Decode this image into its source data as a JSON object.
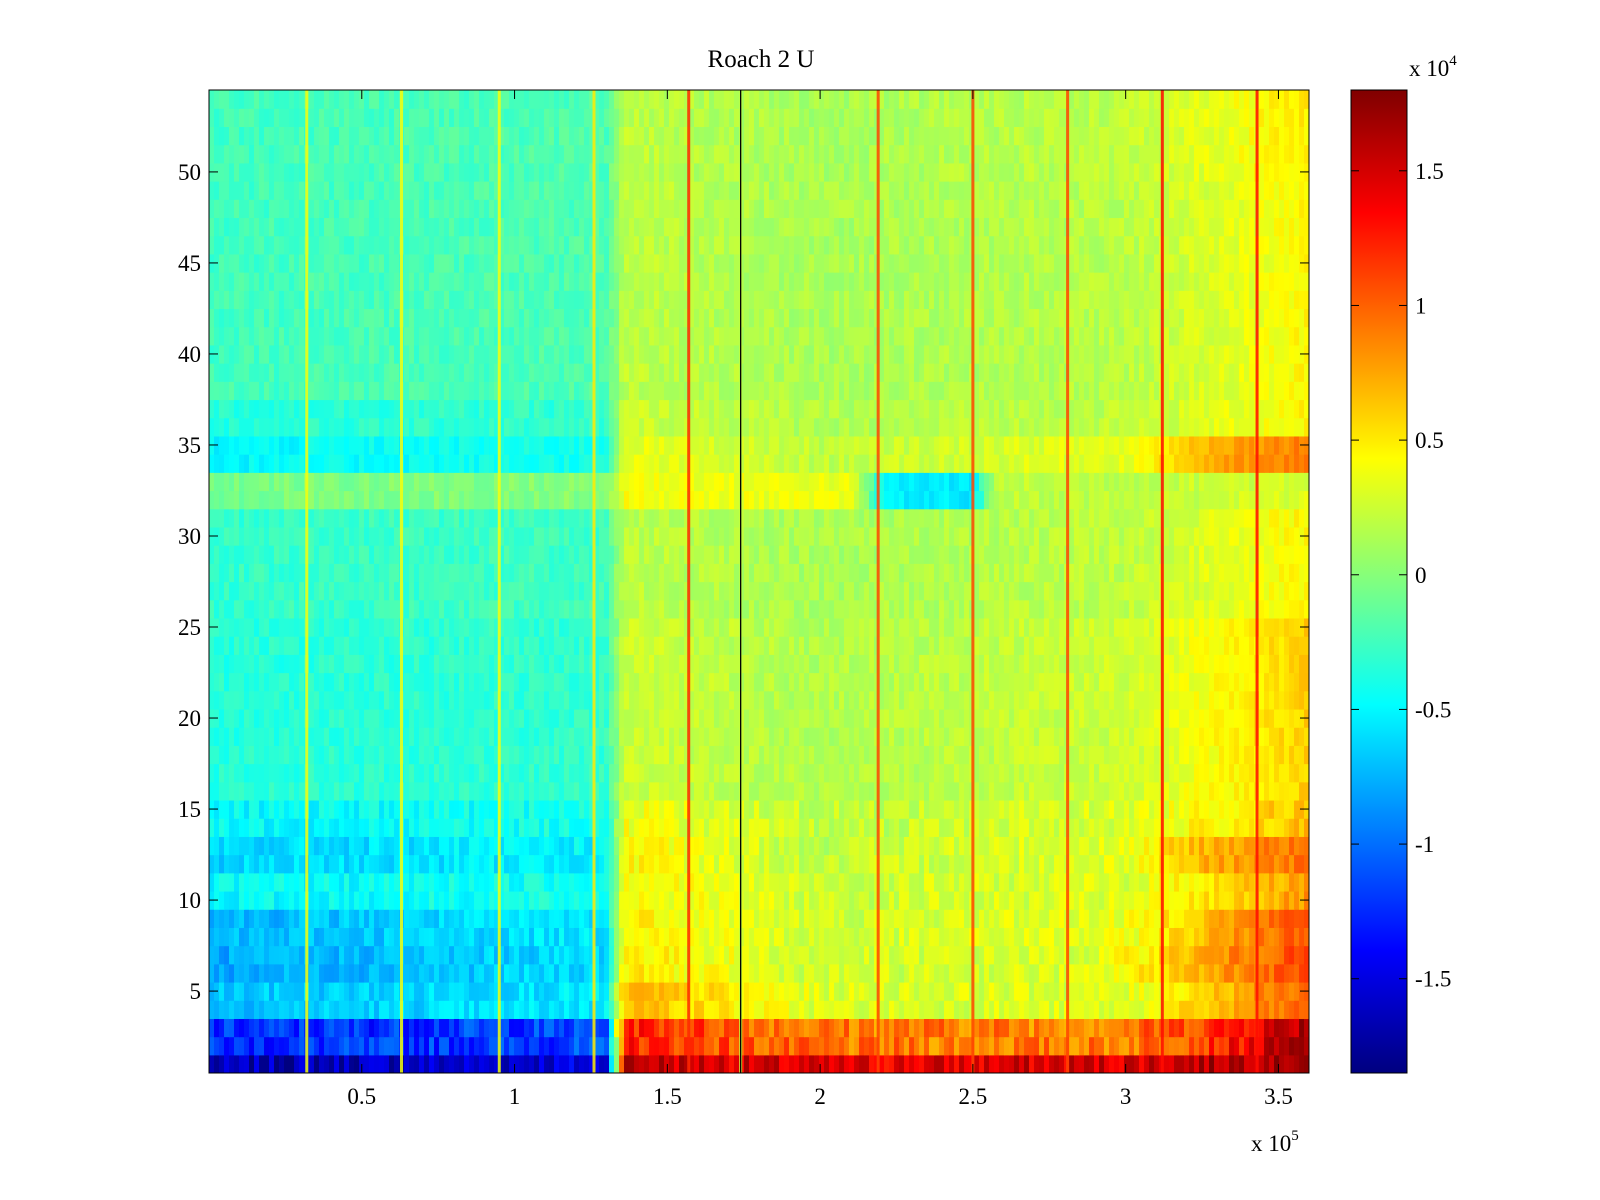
{
  "chart_data": {
    "type": "heatmap",
    "title": "Roach 2 U",
    "xlabel": "",
    "ylabel": "",
    "xlim": [
      0,
      360000
    ],
    "ylim": [
      0.5,
      54.5
    ],
    "x_ticks": [
      50000,
      100000,
      150000,
      200000,
      250000,
      300000,
      350000
    ],
    "x_tick_labels": [
      "0.5",
      "1",
      "1.5",
      "2",
      "2.5",
      "3",
      "3.5"
    ],
    "x_multiplier_label": {
      "base": "x 10",
      "exponent": "5"
    },
    "y_ticks": [
      5,
      10,
      15,
      20,
      25,
      30,
      35,
      40,
      45,
      50
    ],
    "y_tick_labels": [
      "5",
      "10",
      "15",
      "20",
      "25",
      "30",
      "35",
      "40",
      "45",
      "50"
    ],
    "colorbar": {
      "colormap": "jet",
      "clim": [
        -18500,
        18000
      ],
      "ticks": [
        -15000,
        -10000,
        -5000,
        0,
        5000,
        10000,
        15000
      ],
      "tick_labels": [
        "-1.5",
        "-1",
        "-0.5",
        "0",
        "0.5",
        "1",
        "1.5"
      ],
      "multiplier_label": {
        "base": "x 10",
        "exponent": "4"
      }
    },
    "rows": 54,
    "row_bands": [
      {
        "y_from": 1,
        "y_to": 1,
        "values_at_x": [
          [
            0,
            -17000
          ],
          [
            130000,
            -15000
          ],
          [
            136000,
            16000
          ],
          [
            200000,
            14000
          ],
          [
            300000,
            15000
          ],
          [
            360000,
            17500
          ]
        ]
      },
      {
        "y_from": 2,
        "y_to": 3,
        "values_at_x": [
          [
            0,
            -12500
          ],
          [
            130000,
            -11500
          ],
          [
            136000,
            12500
          ],
          [
            200000,
            9000
          ],
          [
            300000,
            9000
          ],
          [
            330000,
            12000
          ],
          [
            360000,
            17000
          ]
        ]
      },
      {
        "y_from": 4,
        "y_to": 5,
        "values_at_x": [
          [
            0,
            -7000
          ],
          [
            130000,
            -5500
          ],
          [
            136000,
            7000
          ],
          [
            200000,
            3000
          ],
          [
            300000,
            3000
          ],
          [
            360000,
            10000
          ]
        ]
      },
      {
        "y_from": 6,
        "y_to": 7,
        "values_at_x": [
          [
            0,
            -8000
          ],
          [
            130000,
            -6000
          ],
          [
            136000,
            5000
          ],
          [
            200000,
            2500
          ],
          [
            290000,
            3000
          ],
          [
            330000,
            8000
          ],
          [
            360000,
            11000
          ]
        ]
      },
      {
        "y_from": 8,
        "y_to": 9,
        "values_at_x": [
          [
            0,
            -7500
          ],
          [
            130000,
            -5500
          ],
          [
            136000,
            5000
          ],
          [
            200000,
            2500
          ],
          [
            300000,
            3500
          ],
          [
            360000,
            11000
          ]
        ]
      },
      {
        "y_from": 10,
        "y_to": 11,
        "values_at_x": [
          [
            0,
            -5000
          ],
          [
            130000,
            -4000
          ],
          [
            136000,
            4500
          ],
          [
            200000,
            2500
          ],
          [
            300000,
            3000
          ],
          [
            360000,
            8000
          ]
        ]
      },
      {
        "y_from": 12,
        "y_to": 13,
        "values_at_x": [
          [
            0,
            -6500
          ],
          [
            130000,
            -5000
          ],
          [
            136000,
            4500
          ],
          [
            200000,
            2000
          ],
          [
            300000,
            3500
          ],
          [
            330000,
            7500
          ],
          [
            360000,
            9500
          ]
        ]
      },
      {
        "y_from": 14,
        "y_to": 15,
        "values_at_x": [
          [
            0,
            -5000
          ],
          [
            130000,
            -4000
          ],
          [
            136000,
            4000
          ],
          [
            200000,
            2000
          ],
          [
            300000,
            3000
          ],
          [
            360000,
            6500
          ]
        ]
      },
      {
        "y_from": 16,
        "y_to": 25,
        "values_at_x": [
          [
            0,
            -3500
          ],
          [
            130000,
            -3000
          ],
          [
            136000,
            2500
          ],
          [
            200000,
            1500
          ],
          [
            300000,
            2500
          ],
          [
            360000,
            6000
          ]
        ]
      },
      {
        "y_from": 26,
        "y_to": 31,
        "values_at_x": [
          [
            0,
            -3000
          ],
          [
            130000,
            -2500
          ],
          [
            136000,
            2000
          ],
          [
            200000,
            1200
          ],
          [
            300000,
            2000
          ],
          [
            360000,
            4500
          ]
        ]
      },
      {
        "y_from": 32,
        "y_to": 33,
        "values_at_x": [
          [
            0,
            -500
          ],
          [
            130000,
            0
          ],
          [
            136000,
            4000
          ],
          [
            210000,
            3500
          ],
          [
            222000,
            -5500
          ],
          [
            250000,
            -5500
          ],
          [
            258000,
            2000
          ],
          [
            300000,
            2000
          ],
          [
            360000,
            3000
          ]
        ]
      },
      {
        "y_from": 34,
        "y_to": 35,
        "values_at_x": [
          [
            0,
            -5000
          ],
          [
            130000,
            -4000
          ],
          [
            136000,
            3500
          ],
          [
            200000,
            2000
          ],
          [
            300000,
            3500
          ],
          [
            330000,
            7500
          ],
          [
            360000,
            9000
          ]
        ]
      },
      {
        "y_from": 36,
        "y_to": 37,
        "values_at_x": [
          [
            0,
            -3500
          ],
          [
            130000,
            -3000
          ],
          [
            136000,
            2500
          ],
          [
            200000,
            1500
          ],
          [
            300000,
            2000
          ],
          [
            360000,
            4500
          ]
        ]
      },
      {
        "y_from": 38,
        "y_to": 49,
        "values_at_x": [
          [
            0,
            -2500
          ],
          [
            130000,
            -2000
          ],
          [
            136000,
            2000
          ],
          [
            200000,
            1200
          ],
          [
            300000,
            1800
          ],
          [
            340000,
            3500
          ],
          [
            360000,
            4500
          ]
        ]
      },
      {
        "y_from": 50,
        "y_to": 54,
        "values_at_x": [
          [
            0,
            -2500
          ],
          [
            130000,
            -2000
          ],
          [
            136000,
            2000
          ],
          [
            200000,
            1200
          ],
          [
            300000,
            2000
          ],
          [
            340000,
            4000
          ],
          [
            360000,
            5000
          ]
        ]
      }
    ],
    "vertical_streaks": [
      {
        "x": 32000,
        "value": 4000
      },
      {
        "x": 63000,
        "value": 4000
      },
      {
        "x": 95000,
        "value": 4000
      },
      {
        "x": 126000,
        "value": 5000
      },
      {
        "x": 157000,
        "value": 12000
      },
      {
        "x": 174000,
        "value": 2000
      },
      {
        "x": 219000,
        "value": 11000
      },
      {
        "x": 250000,
        "value": 11000
      },
      {
        "x": 281000,
        "value": 11000
      },
      {
        "x": 312000,
        "value": 13000
      },
      {
        "x": 343000,
        "value": 13000
      }
    ],
    "marker_line": {
      "x": 174000
    },
    "grid": false,
    "legend": "colorbar-right"
  }
}
